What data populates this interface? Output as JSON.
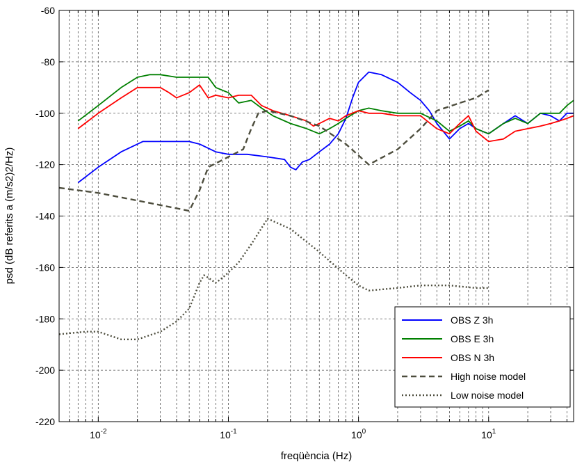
{
  "chart_data": {
    "type": "line",
    "xlabel": "freqüència (Hz)",
    "ylabel": "psd (dB referits a (m/s2)2/Hz)",
    "xscale": "log",
    "xlim": [
      0.005,
      45
    ],
    "ylim": [
      -220,
      -60
    ],
    "grid": true,
    "legend_position": "bottom-right",
    "y_ticks": [
      -220,
      -200,
      -180,
      -160,
      -140,
      -120,
      -100,
      -80,
      -60
    ],
    "x_ticks": [
      {
        "base": "10",
        "exp": "-2",
        "value": 0.01
      },
      {
        "base": "10",
        "exp": "-1",
        "value": 0.1
      },
      {
        "base": "10",
        "exp": "0",
        "value": 1
      },
      {
        "base": "10",
        "exp": "1",
        "value": 10
      }
    ],
    "series": [
      {
        "name": "OBS Z 3h",
        "color": "#0000ff",
        "style": "solid",
        "points": [
          [
            0.007,
            -127
          ],
          [
            0.01,
            -121
          ],
          [
            0.015,
            -115
          ],
          [
            0.022,
            -111
          ],
          [
            0.03,
            -111
          ],
          [
            0.05,
            -111
          ],
          [
            0.06,
            -112
          ],
          [
            0.08,
            -115
          ],
          [
            0.1,
            -116
          ],
          [
            0.14,
            -116
          ],
          [
            0.2,
            -117
          ],
          [
            0.27,
            -118
          ],
          [
            0.3,
            -121
          ],
          [
            0.33,
            -122
          ],
          [
            0.37,
            -119
          ],
          [
            0.42,
            -118
          ],
          [
            0.5,
            -115
          ],
          [
            0.6,
            -112
          ],
          [
            0.7,
            -108
          ],
          [
            0.8,
            -102
          ],
          [
            0.9,
            -94
          ],
          [
            1.0,
            -88
          ],
          [
            1.2,
            -84
          ],
          [
            1.5,
            -85
          ],
          [
            2.0,
            -88
          ],
          [
            2.5,
            -92
          ],
          [
            3.0,
            -95
          ],
          [
            3.5,
            -99
          ],
          [
            4.0,
            -104
          ],
          [
            5.0,
            -110
          ],
          [
            6.0,
            -106
          ],
          [
            7.0,
            -104
          ],
          [
            8.0,
            -106
          ],
          [
            10.0,
            -108
          ],
          [
            13.0,
            -104
          ],
          [
            16.0,
            -101
          ],
          [
            20.0,
            -104
          ],
          [
            25.0,
            -100
          ],
          [
            30.0,
            -101
          ],
          [
            35.0,
            -103
          ],
          [
            40.0,
            -100
          ],
          [
            45.0,
            -100
          ]
        ]
      },
      {
        "name": "OBS E 3h",
        "color": "#008000",
        "style": "solid",
        "points": [
          [
            0.007,
            -103
          ],
          [
            0.01,
            -97
          ],
          [
            0.015,
            -90
          ],
          [
            0.02,
            -86
          ],
          [
            0.025,
            -85
          ],
          [
            0.03,
            -85
          ],
          [
            0.04,
            -86
          ],
          [
            0.05,
            -86
          ],
          [
            0.06,
            -86
          ],
          [
            0.07,
            -86
          ],
          [
            0.08,
            -90
          ],
          [
            0.1,
            -92
          ],
          [
            0.12,
            -96
          ],
          [
            0.15,
            -95
          ],
          [
            0.18,
            -98
          ],
          [
            0.22,
            -101
          ],
          [
            0.3,
            -104
          ],
          [
            0.4,
            -106
          ],
          [
            0.5,
            -108
          ],
          [
            0.6,
            -106
          ],
          [
            0.7,
            -104
          ],
          [
            0.8,
            -102
          ],
          [
            1.0,
            -99
          ],
          [
            1.2,
            -98
          ],
          [
            1.5,
            -99
          ],
          [
            2.0,
            -100
          ],
          [
            3.0,
            -100
          ],
          [
            4.0,
            -103
          ],
          [
            5.0,
            -107
          ],
          [
            6.0,
            -105
          ],
          [
            7.0,
            -103
          ],
          [
            8.0,
            -106
          ],
          [
            10.0,
            -108
          ],
          [
            13.0,
            -104
          ],
          [
            16.0,
            -102
          ],
          [
            20.0,
            -104
          ],
          [
            25.0,
            -100
          ],
          [
            30.0,
            -100
          ],
          [
            35.0,
            -100
          ],
          [
            40.0,
            -97
          ],
          [
            45.0,
            -95
          ]
        ]
      },
      {
        "name": "OBS N 3h",
        "color": "#ff0000",
        "style": "solid",
        "points": [
          [
            0.007,
            -106
          ],
          [
            0.01,
            -100
          ],
          [
            0.015,
            -94
          ],
          [
            0.02,
            -90
          ],
          [
            0.03,
            -90
          ],
          [
            0.035,
            -92
          ],
          [
            0.04,
            -94
          ],
          [
            0.05,
            -92
          ],
          [
            0.06,
            -89
          ],
          [
            0.07,
            -94
          ],
          [
            0.08,
            -93
          ],
          [
            0.1,
            -94
          ],
          [
            0.12,
            -93
          ],
          [
            0.15,
            -93
          ],
          [
            0.18,
            -97
          ],
          [
            0.22,
            -99
          ],
          [
            0.3,
            -101
          ],
          [
            0.4,
            -103
          ],
          [
            0.45,
            -105
          ],
          [
            0.5,
            -104
          ],
          [
            0.6,
            -102
          ],
          [
            0.7,
            -103
          ],
          [
            0.8,
            -101
          ],
          [
            1.0,
            -99
          ],
          [
            1.2,
            -100
          ],
          [
            1.5,
            -100
          ],
          [
            2.0,
            -101
          ],
          [
            3.0,
            -101
          ],
          [
            4.0,
            -106
          ],
          [
            5.0,
            -108
          ],
          [
            6.0,
            -104
          ],
          [
            7.0,
            -101
          ],
          [
            8.0,
            -107
          ],
          [
            10.0,
            -111
          ],
          [
            13.0,
            -110
          ],
          [
            16.0,
            -107
          ],
          [
            20.0,
            -106
          ],
          [
            25.0,
            -105
          ],
          [
            30.0,
            -104
          ],
          [
            35.0,
            -103
          ],
          [
            40.0,
            -102
          ],
          [
            45.0,
            -101
          ]
        ]
      },
      {
        "name": "High noise model",
        "color": "#4d4d3d",
        "style": "dashed",
        "points": [
          [
            0.005,
            -129
          ],
          [
            0.01,
            -131
          ],
          [
            0.02,
            -134
          ],
          [
            0.04,
            -137
          ],
          [
            0.05,
            -138
          ],
          [
            0.06,
            -130
          ],
          [
            0.07,
            -121
          ],
          [
            0.1,
            -117
          ],
          [
            0.13,
            -114
          ],
          [
            0.15,
            -106
          ],
          [
            0.17,
            -100
          ],
          [
            0.2,
            -99
          ],
          [
            0.3,
            -101
          ],
          [
            0.5,
            -105
          ],
          [
            0.8,
            -112
          ],
          [
            1.2,
            -120
          ],
          [
            2.0,
            -114
          ],
          [
            3.0,
            -106
          ],
          [
            4.0,
            -99
          ],
          [
            6.0,
            -96
          ],
          [
            8.0,
            -94
          ],
          [
            10.0,
            -91
          ]
        ]
      },
      {
        "name": "Low noise model",
        "color": "#4d4d3d",
        "style": "dotted",
        "points": [
          [
            0.005,
            -186
          ],
          [
            0.008,
            -185
          ],
          [
            0.01,
            -185
          ],
          [
            0.015,
            -188
          ],
          [
            0.02,
            -188
          ],
          [
            0.03,
            -185
          ],
          [
            0.04,
            -181
          ],
          [
            0.05,
            -176
          ],
          [
            0.06,
            -166
          ],
          [
            0.065,
            -163
          ],
          [
            0.07,
            -164
          ],
          [
            0.08,
            -166
          ],
          [
            0.09,
            -164
          ],
          [
            0.1,
            -162
          ],
          [
            0.12,
            -158
          ],
          [
            0.15,
            -151
          ],
          [
            0.2,
            -141
          ],
          [
            0.3,
            -145
          ],
          [
            0.5,
            -154
          ],
          [
            0.8,
            -163
          ],
          [
            1.0,
            -167
          ],
          [
            1.2,
            -169
          ],
          [
            2.0,
            -168
          ],
          [
            3.0,
            -167
          ],
          [
            5.0,
            -167
          ],
          [
            8.0,
            -168
          ],
          [
            10.0,
            -168
          ]
        ]
      }
    ]
  }
}
